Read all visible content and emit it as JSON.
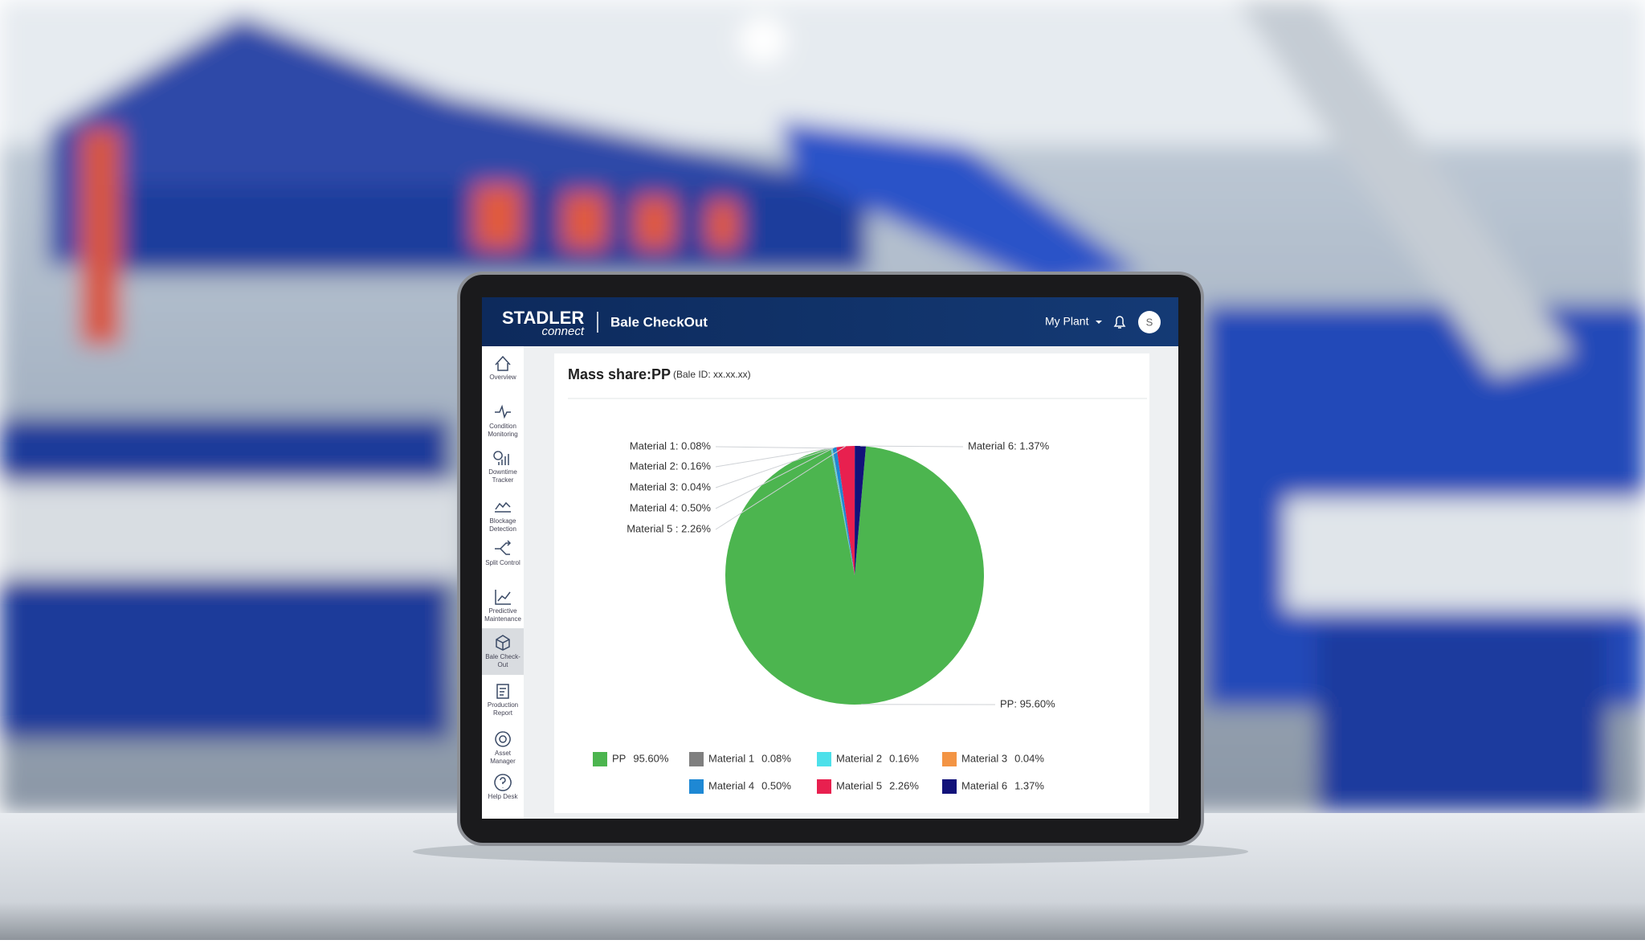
{
  "header": {
    "brand": "STADLER",
    "brand_sub": "connect",
    "app_title": "Bale CheckOut",
    "plant": "My Plant",
    "avatar": "S"
  },
  "sidebar": {
    "items": [
      {
        "lines": [
          "Overview"
        ]
      },
      {
        "lines": [
          "Condition",
          "Monitoring"
        ]
      },
      {
        "lines": [
          "Downtime",
          "Tracker"
        ]
      },
      {
        "lines": [
          "Blockage",
          "Detection"
        ]
      },
      {
        "lines": [
          "Split Control"
        ]
      },
      {
        "lines": [
          "Predictive",
          "Maintenance"
        ]
      },
      {
        "lines": [
          "Bale Check-",
          "Out"
        ]
      },
      {
        "lines": [
          "Production",
          "Report"
        ]
      },
      {
        "lines": [
          "Asset",
          "Manager"
        ]
      },
      {
        "lines": [
          "Help Desk"
        ]
      }
    ],
    "active": 6
  },
  "chart_data": {
    "type": "pie",
    "title": "Mass share:",
    "title_material": "PP",
    "subtitle": "(Bale ID: xx.xx.xx)",
    "categories": [
      "PP",
      "Material 1",
      "Material 2",
      "Material 3",
      "Material 4",
      "Material 5",
      "Material 6"
    ],
    "values": [
      95.6,
      0.08,
      0.16,
      0.04,
      0.5,
      2.26,
      1.37
    ],
    "value_labels": [
      "95.60%",
      "0.08%",
      "0.16%",
      "0.04%",
      "0.50%",
      "2.26%",
      "1.37%"
    ],
    "callout_labels": [
      "PP: 95.60%",
      "Material 1: 0.08%",
      "Material 2: 0.16%",
      "Material 3: 0.04%",
      "Material 4: 0.50%",
      "Material 5 : 2.26%",
      "Material 6: 1.37%"
    ],
    "colors": [
      "#4cb54f",
      "#7f7f7f",
      "#4de0ea",
      "#f39444",
      "#1e88d4",
      "#e8204f",
      "#12127a"
    ]
  }
}
